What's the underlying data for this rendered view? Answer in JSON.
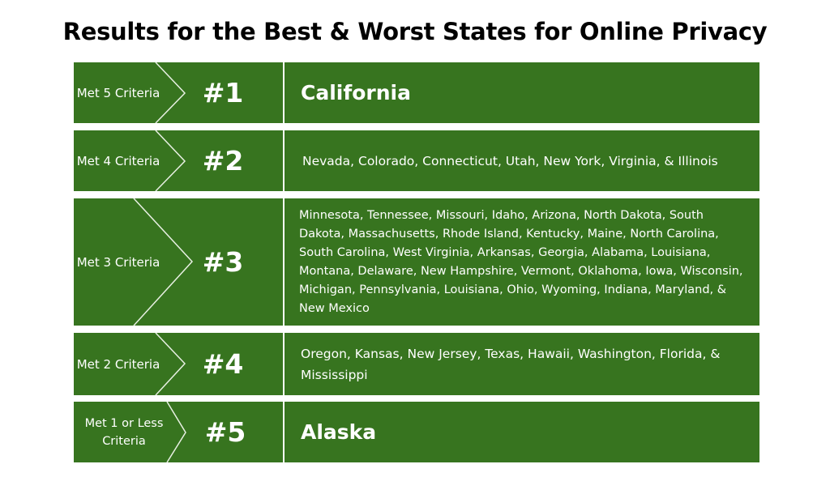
{
  "title": "Results for the Best & Worst States for Online Privacy",
  "colors": {
    "green": "#37741f",
    "background": "#ffffff"
  },
  "rows": [
    {
      "criteria": "Met 5 Criteria",
      "rank": "#1",
      "states": "California"
    },
    {
      "criteria": "Met 4 Criteria",
      "rank": "#2",
      "states": "Nevada, Colorado, Connecticut, Utah, New York, Virginia, & Illinois"
    },
    {
      "criteria": "Met 3 Criteria",
      "rank": "#3",
      "states": "Minnesota, Tennessee, Missouri, Idaho, Arizona, North Dakota, South Dakota, Massachusetts, Rhode Island, Kentucky, Maine, North Carolina, South Carolina, West Virginia, Arkansas, Georgia, Alabama, Louisiana, Montana, Delaware, New Hampshire, Vermont, Oklahoma, Iowa, Wisconsin, Michigan, Pennsylvania, Louisiana, Ohio, Wyoming, Indiana, Maryland, & New Mexico"
    },
    {
      "criteria": "Met 2 Criteria",
      "rank": "#4",
      "states": "Oregon, Kansas, New Jersey, Texas, Hawaii, Washington, Florida, & Mississippi"
    },
    {
      "criteria": "Met 1 or Less Criteria",
      "rank": "#5",
      "states": "Alaska"
    }
  ]
}
